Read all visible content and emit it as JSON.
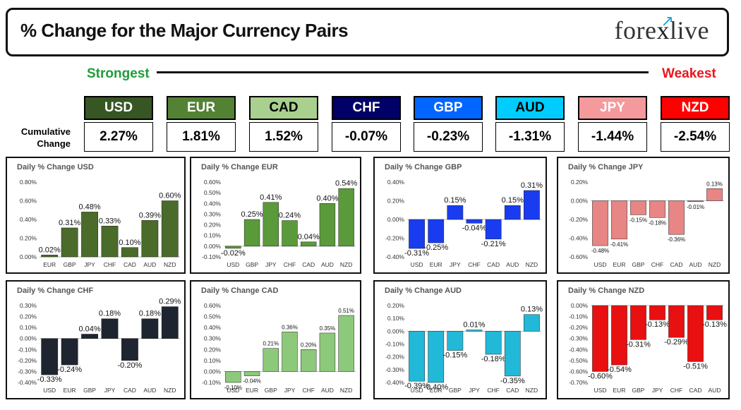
{
  "header": {
    "title": "% Change for the Major Currency Pairs",
    "logo_text": "forexlive"
  },
  "scale": {
    "left_label": "Strongest",
    "right_label": "Weakest"
  },
  "cumulative": {
    "label_line1": "Cumulative",
    "label_line2": "Change",
    "currencies": [
      {
        "code": "USD",
        "value": "2.27%",
        "bg": "#375623",
        "fg": "#ffffff"
      },
      {
        "code": "EUR",
        "value": "1.81%",
        "bg": "#548235",
        "fg": "#ffffff"
      },
      {
        "code": "CAD",
        "value": "1.52%",
        "bg": "#a9d08e",
        "fg": "#000000"
      },
      {
        "code": "CHF",
        "value": "-0.07%",
        "bg": "#000066",
        "fg": "#ffffff"
      },
      {
        "code": "GBP",
        "value": "-0.23%",
        "bg": "#0066ff",
        "fg": "#ffffff"
      },
      {
        "code": "AUD",
        "value": "-1.31%",
        "bg": "#00ccff",
        "fg": "#000000"
      },
      {
        "code": "JPY",
        "value": "-1.44%",
        "bg": "#f4999c",
        "fg": "#ffffff"
      },
      {
        "code": "NZD",
        "value": "-2.54%",
        "bg": "#ff0000",
        "fg": "#ffffff"
      }
    ]
  },
  "chart_data": [
    {
      "type": "bar",
      "title": "Daily % Change USD",
      "categories": [
        "EUR",
        "GBP",
        "JPY",
        "CHF",
        "CAD",
        "AUD",
        "NZD"
      ],
      "values": [
        0.02,
        0.31,
        0.48,
        0.33,
        0.1,
        0.39,
        0.6
      ],
      "labels": [
        "0.02%",
        "0.31%",
        "0.48%",
        "0.33%",
        "0.10%",
        "0.39%",
        "0.60%"
      ],
      "ylim": [
        0,
        0.8
      ],
      "ticks": [
        0,
        0.2,
        0.4,
        0.6,
        0.8
      ],
      "tick_labels": [
        "0.00%",
        "0.20%",
        "0.40%",
        "0.60%",
        "0.80%"
      ],
      "color": "#4a6b2a",
      "label_size": 11
    },
    {
      "type": "bar",
      "title": "Daily % Change EUR",
      "categories": [
        "USD",
        "GBP",
        "JPY",
        "CHF",
        "CAD",
        "AUD",
        "NZD"
      ],
      "values": [
        -0.02,
        0.25,
        0.41,
        0.24,
        0.04,
        0.4,
        0.54
      ],
      "labels": [
        "-0.02%",
        "0.25%",
        "0.41%",
        "0.24%",
        "0.04%",
        "0.40%",
        "0.54%"
      ],
      "ylim": [
        -0.1,
        0.6
      ],
      "ticks": [
        -0.1,
        0,
        0.1,
        0.2,
        0.3,
        0.4,
        0.5,
        0.6
      ],
      "tick_labels": [
        "-0.10%",
        "0.00%",
        "0.10%",
        "0.20%",
        "0.30%",
        "0.40%",
        "0.50%",
        "0.60%"
      ],
      "color": "#5a9a3a",
      "label_size": 11
    },
    {
      "type": "bar",
      "title": "Daily % Change GBP",
      "categories": [
        "USD",
        "EUR",
        "JPY",
        "CHF",
        "CAD",
        "AUD",
        "NZD"
      ],
      "values": [
        -0.31,
        -0.25,
        0.15,
        -0.04,
        -0.21,
        0.15,
        0.31
      ],
      "labels": [
        "-0.31%",
        "-0.25%",
        "0.15%",
        "-0.04%",
        "-0.21%",
        "0.15%",
        "0.31%"
      ],
      "ylim": [
        -0.4,
        0.4
      ],
      "ticks": [
        -0.4,
        -0.2,
        0,
        0.2,
        0.4
      ],
      "tick_labels": [
        "-0.40%",
        "-0.20%",
        "0.00%",
        "0.20%",
        "0.40%"
      ],
      "color": "#1a3cf0",
      "label_size": 11
    },
    {
      "type": "bar",
      "title": "Daily % Change JPY",
      "categories": [
        "USD",
        "EUR",
        "GBP",
        "CHF",
        "CAD",
        "AUD",
        "NZD"
      ],
      "values": [
        -0.48,
        -0.41,
        -0.15,
        -0.18,
        -0.36,
        -0.01,
        0.13
      ],
      "labels": [
        "-0.48%",
        "-0.41%",
        "-0.15%",
        "-0.18%",
        "-0.36%",
        "-0.01%",
        "0.13%"
      ],
      "ylim": [
        -0.6,
        0.2
      ],
      "ticks": [
        -0.6,
        -0.4,
        -0.2,
        0,
        0.2
      ],
      "tick_labels": [
        "-0.60%",
        "-0.40%",
        "-0.20%",
        "0.00%",
        "0.20%"
      ],
      "color": "#e88585",
      "label_size": 8
    },
    {
      "type": "bar",
      "title": "Daily % Change CHF",
      "categories": [
        "USD",
        "EUR",
        "GBP",
        "JPY",
        "CAD",
        "AUD",
        "NZD"
      ],
      "values": [
        -0.33,
        -0.24,
        0.04,
        0.18,
        -0.2,
        0.18,
        0.29
      ],
      "labels": [
        "-0.33%",
        "-0.24%",
        "0.04%",
        "0.18%",
        "-0.20%",
        "0.18%",
        "0.29%"
      ],
      "ylim": [
        -0.4,
        0.3
      ],
      "ticks": [
        -0.4,
        -0.3,
        -0.2,
        -0.1,
        0,
        0.1,
        0.2,
        0.3
      ],
      "tick_labels": [
        "-0.40%",
        "-0.30%",
        "-0.20%",
        "-0.10%",
        "0.00%",
        "0.10%",
        "0.20%",
        "0.30%"
      ],
      "color": "#1e2530",
      "label_size": 11
    },
    {
      "type": "bar",
      "title": "Daily % Change CAD",
      "categories": [
        "USD",
        "EUR",
        "GBP",
        "JPY",
        "CHF",
        "AUD",
        "NZD"
      ],
      "values": [
        -0.1,
        -0.04,
        0.21,
        0.36,
        0.2,
        0.35,
        0.51
      ],
      "labels": [
        "-0.10%",
        "-0.04%",
        "0.21%",
        "0.36%",
        "0.20%",
        "0.35%",
        "0.51%"
      ],
      "ylim": [
        -0.1,
        0.6
      ],
      "ticks": [
        -0.1,
        0,
        0.1,
        0.2,
        0.3,
        0.4,
        0.5,
        0.6
      ],
      "tick_labels": [
        "-0.10%",
        "0.00%",
        "0.10%",
        "0.20%",
        "0.30%",
        "0.40%",
        "0.50%",
        "0.60%"
      ],
      "color": "#8cc97a",
      "label_size": 8
    },
    {
      "type": "bar",
      "title": "Daily % Change AUD",
      "categories": [
        "USD",
        "EUR",
        "GBP",
        "JPY",
        "CHF",
        "CAD",
        "NZD"
      ],
      "values": [
        -0.39,
        -0.4,
        -0.15,
        0.01,
        -0.18,
        -0.35,
        0.13
      ],
      "labels": [
        "-0.39%",
        "-0.40%",
        "-0.15%",
        "0.01%",
        "-0.18%",
        "-0.35%",
        "0.13%"
      ],
      "ylim": [
        -0.4,
        0.2
      ],
      "ticks": [
        -0.4,
        -0.3,
        -0.2,
        -0.1,
        0,
        0.1,
        0.2
      ],
      "tick_labels": [
        "-0.40%",
        "-0.30%",
        "-0.20%",
        "-0.10%",
        "0.00%",
        "0.10%",
        "0.20%"
      ],
      "color": "#22b8d8",
      "label_size": 11
    },
    {
      "type": "bar",
      "title": "Daily % Change NZD",
      "categories": [
        "USD",
        "EUR",
        "GBP",
        "JPY",
        "CHF",
        "CAD",
        "AUD"
      ],
      "values": [
        -0.6,
        -0.54,
        -0.31,
        -0.13,
        -0.29,
        -0.51,
        -0.13
      ],
      "labels": [
        "-0.60%",
        "-0.54%",
        "-0.31%",
        "-0.13%",
        "-0.29%",
        "-0.51%",
        "-0.13%"
      ],
      "ylim": [
        -0.7,
        0
      ],
      "ticks": [
        -0.7,
        -0.6,
        -0.5,
        -0.4,
        -0.3,
        -0.2,
        -0.1,
        0
      ],
      "tick_labels": [
        "-0.70%",
        "-0.60%",
        "-0.50%",
        "-0.40%",
        "-0.30%",
        "-0.20%",
        "-0.10%",
        "0.00%"
      ],
      "color": "#e81010",
      "label_size": 11
    }
  ]
}
